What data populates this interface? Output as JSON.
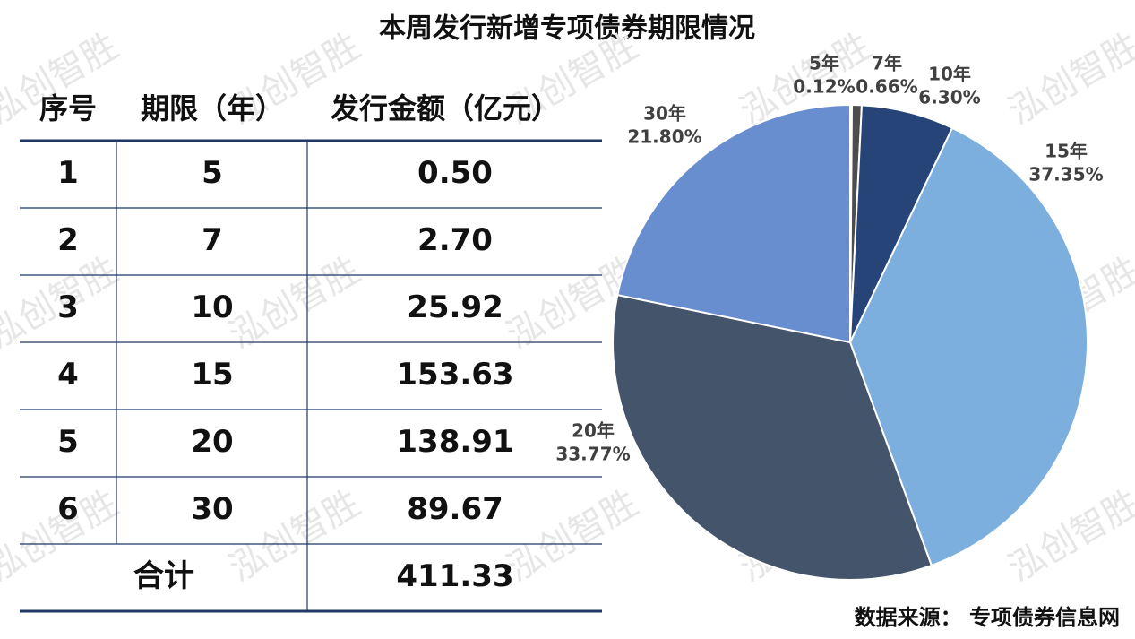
{
  "title": "本周发行新增专项债券期限情况",
  "watermark": "泓创智胜",
  "source": "数据来源： 专项债券信息网",
  "table": {
    "header": [
      "序号",
      "期限（年）",
      "发行金额（亿元）"
    ],
    "rows": [
      [
        "1",
        "5",
        "0.50"
      ],
      [
        "2",
        "7",
        "2.70"
      ],
      [
        "3",
        "10",
        "25.92"
      ],
      [
        "4",
        "15",
        "153.63"
      ],
      [
        "5",
        "20",
        "138.91"
      ],
      [
        "6",
        "30",
        "89.67"
      ]
    ],
    "total": [
      "合计",
      "411.33"
    ]
  },
  "chart_data": {
    "type": "pie",
    "categories": [
      "5年",
      "7年",
      "10年",
      "15年",
      "20年",
      "30年"
    ],
    "values": [
      0.12,
      0.66,
      6.3,
      37.35,
      33.77,
      21.8
    ],
    "value_labels": [
      "0.12%",
      "0.66%",
      "6.30%",
      "37.35%",
      "33.77%",
      "21.80%"
    ],
    "colors": [
      "#8c8c8c",
      "#4d4d4d",
      "#264478",
      "#7cafdd",
      "#44546a",
      "#698ed0"
    ]
  }
}
